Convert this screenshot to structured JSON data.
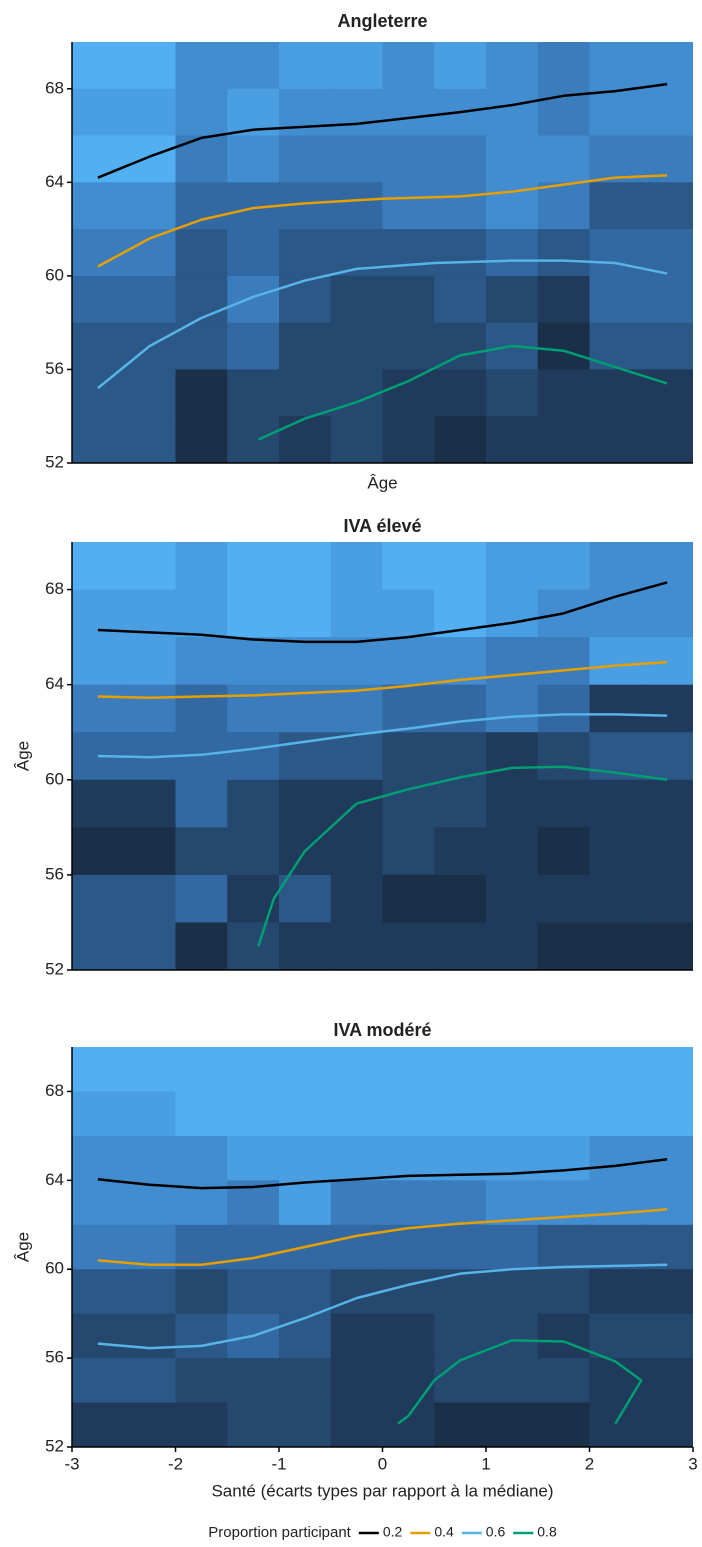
{
  "chart_data": [
    {
      "type": "heatmap",
      "title": "Angleterre",
      "xlabel": "Âge",
      "xlim": [
        -3,
        3
      ],
      "ylim": [
        52,
        70
      ],
      "yticks": [
        52,
        56,
        60,
        64,
        68
      ],
      "tile_x": [
        -3,
        -2.5,
        -2,
        -1.5,
        -1,
        -0.5,
        0,
        0.5,
        1,
        1.5,
        2,
        2.5,
        3
      ],
      "tile_y": [
        70,
        68,
        66,
        64,
        62,
        60,
        58,
        56,
        54,
        52
      ],
      "tiles": [
        [
          "#52b0f2",
          "#52b0f2",
          "#428dd0",
          "#428dd0",
          "#4a9fe2",
          "#4a9fe2",
          "#428dd0",
          "#4a9fe2",
          "#428dd0",
          "#3a7cbc",
          "#428dd0",
          "#428dd0"
        ],
        [
          "#4a9fe2",
          "#4a9fe2",
          "#428dd0",
          "#4a9fe2",
          "#428dd0",
          "#428dd0",
          "#428dd0",
          "#428dd0",
          "#428dd0",
          "#3a7cbc",
          "#428dd0",
          "#428dd0"
        ],
        [
          "#52b0f2",
          "#52b0f2",
          "#3a7cbc",
          "#428dd0",
          "#3a7cbc",
          "#3a7cbc",
          "#3a7cbc",
          "#3a7cbc",
          "#428dd0",
          "#428dd0",
          "#3a7cbc",
          "#3a7cbc"
        ],
        [
          "#428dd0",
          "#428dd0",
          "#3269a2",
          "#3269a2",
          "#3269a2",
          "#3269a2",
          "#3a7cbc",
          "#3a7cbc",
          "#428dd0",
          "#3a7cbc",
          "#2b5887",
          "#2b5887"
        ],
        [
          "#3a7cbc",
          "#3a7cbc",
          "#2b5887",
          "#3269a2",
          "#2b5887",
          "#2b5887",
          "#2b5887",
          "#2b5887",
          "#3269a2",
          "#2b5887",
          "#3269a2",
          "#3269a2"
        ],
        [
          "#3269a2",
          "#3269a2",
          "#2b5887",
          "#3a7cbc",
          "#2b5887",
          "#25486f",
          "#25486f",
          "#2b5887",
          "#25486f",
          "#1f3a5a",
          "#3269a2",
          "#3269a2"
        ],
        [
          "#2b5887",
          "#2b5887",
          "#2b5887",
          "#3269a2",
          "#25486f",
          "#25486f",
          "#25486f",
          "#25486f",
          "#2b5887",
          "#193048",
          "#2b5887",
          "#2b5887"
        ],
        [
          "#2b5887",
          "#2b5887",
          "#193048",
          "#25486f",
          "#25486f",
          "#25486f",
          "#1f3a5a",
          "#1f3a5a",
          "#25486f",
          "#1f3a5a",
          "#1f3a5a",
          "#1f3a5a"
        ],
        [
          "#2b5887",
          "#2b5887",
          "#193048",
          "#25486f",
          "#1f3a5a",
          "#25486f",
          "#1f3a5a",
          "#193048",
          "#1f3a5a",
          "#1f3a5a",
          "#1f3a5a",
          "#1f3a5a"
        ]
      ],
      "series": [
        {
          "name": "0.2",
          "color": "#000000",
          "x": [
            -2.75,
            -2.25,
            -1.75,
            -1.25,
            -0.25,
            0.75,
            1.25,
            1.75,
            2.25,
            2.75
          ],
          "values": [
            64.2,
            65.1,
            65.9,
            66.25,
            66.5,
            67.0,
            67.3,
            67.7,
            67.9,
            68.2
          ]
        },
        {
          "name": "0.4",
          "color": "#e69f00",
          "x": [
            -2.75,
            -2.5,
            -2.25,
            -1.75,
            -1.25,
            -0.75,
            0,
            0.75,
            1.25,
            1.75,
            2.25,
            2.75
          ],
          "values": [
            60.4,
            61.0,
            61.6,
            62.4,
            62.9,
            63.1,
            63.3,
            63.4,
            63.6,
            63.9,
            64.2,
            64.3
          ]
        },
        {
          "name": "0.6",
          "color": "#56b4e9",
          "x": [
            -2.75,
            -2.25,
            -1.75,
            -1.25,
            -0.75,
            -0.25,
            0.5,
            1.25,
            1.75,
            2.25,
            2.75
          ],
          "values": [
            55.2,
            57.0,
            58.2,
            59.1,
            59.8,
            60.3,
            60.55,
            60.65,
            60.65,
            60.55,
            60.1
          ]
        },
        {
          "name": "0.8",
          "color": "#009e73",
          "x": [
            -1.2,
            -0.75,
            -0.25,
            0.25,
            0.75,
            1.25,
            1.75,
            2.25,
            2.75
          ],
          "values": [
            53.0,
            53.9,
            54.6,
            55.5,
            56.6,
            57.0,
            56.8,
            56.1,
            55.4
          ]
        }
      ]
    },
    {
      "type": "heatmap",
      "title": "IVA élevé",
      "ylabel": "Âge",
      "xlim": [
        -3,
        3
      ],
      "ylim": [
        52,
        70
      ],
      "yticks": [
        52,
        56,
        60,
        64,
        68
      ],
      "tile_x": [
        -3,
        -2.5,
        -2,
        -1.5,
        -1,
        -0.5,
        0,
        0.5,
        1,
        1.5,
        2,
        2.5,
        3
      ],
      "tile_y": [
        70,
        68,
        66,
        64,
        62,
        60,
        58,
        56,
        54,
        52
      ],
      "tiles": [
        [
          "#52b0f2",
          "#52b0f2",
          "#4a9fe2",
          "#52b0f2",
          "#52b0f2",
          "#4a9fe2",
          "#52b0f2",
          "#52b0f2",
          "#4a9fe2",
          "#4a9fe2",
          "#428dd0",
          "#428dd0"
        ],
        [
          "#4a9fe2",
          "#4a9fe2",
          "#4a9fe2",
          "#52b0f2",
          "#52b0f2",
          "#4a9fe2",
          "#4a9fe2",
          "#52b0f2",
          "#4a9fe2",
          "#428dd0",
          "#428dd0",
          "#428dd0"
        ],
        [
          "#4a9fe2",
          "#4a9fe2",
          "#428dd0",
          "#428dd0",
          "#428dd0",
          "#428dd0",
          "#428dd0",
          "#428dd0",
          "#3a7cbc",
          "#3a7cbc",
          "#4a9fe2",
          "#4a9fe2"
        ],
        [
          "#3a7cbc",
          "#3a7cbc",
          "#3269a2",
          "#3a7cbc",
          "#3a7cbc",
          "#3a7cbc",
          "#3269a2",
          "#3269a2",
          "#3a7cbc",
          "#3269a2",
          "#1f3a5a",
          "#1f3a5a"
        ],
        [
          "#3269a2",
          "#3269a2",
          "#3269a2",
          "#3269a2",
          "#2b5887",
          "#2b5887",
          "#25486f",
          "#25486f",
          "#1f3a5a",
          "#25486f",
          "#2b5887",
          "#2b5887"
        ],
        [
          "#1f3a5a",
          "#1f3a5a",
          "#3269a2",
          "#25486f",
          "#1f3a5a",
          "#1f3a5a",
          "#25486f",
          "#25486f",
          "#1f3a5a",
          "#1f3a5a",
          "#1f3a5a",
          "#1f3a5a"
        ],
        [
          "#193048",
          "#193048",
          "#25486f",
          "#25486f",
          "#1f3a5a",
          "#1f3a5a",
          "#25486f",
          "#1f3a5a",
          "#1f3a5a",
          "#193048",
          "#1f3a5a",
          "#1f3a5a"
        ],
        [
          "#2b5887",
          "#2b5887",
          "#3269a2",
          "#1f3a5a",
          "#2b5887",
          "#1f3a5a",
          "#193048",
          "#193048",
          "#1f3a5a",
          "#1f3a5a",
          "#1f3a5a",
          "#1f3a5a"
        ],
        [
          "#2b5887",
          "#2b5887",
          "#193048",
          "#25486f",
          "#1f3a5a",
          "#1f3a5a",
          "#1f3a5a",
          "#1f3a5a",
          "#1f3a5a",
          "#193048",
          "#193048",
          "#193048"
        ]
      ],
      "series": [
        {
          "name": "0.2",
          "color": "#000000",
          "x": [
            -2.75,
            -2.25,
            -1.75,
            -1.25,
            -0.75,
            -0.25,
            0.25,
            0.75,
            1.25,
            1.75,
            2.25,
            2.75
          ],
          "values": [
            66.3,
            66.2,
            66.1,
            65.9,
            65.8,
            65.8,
            66.0,
            66.3,
            66.6,
            67.0,
            67.7,
            68.3
          ]
        },
        {
          "name": "0.4",
          "color": "#e69f00",
          "x": [
            -2.75,
            -2.25,
            -1.75,
            -1.25,
            -0.75,
            -0.25,
            0.25,
            0.75,
            1.25,
            1.75,
            2.25,
            2.75
          ],
          "values": [
            63.5,
            63.45,
            63.5,
            63.55,
            63.65,
            63.75,
            63.95,
            64.2,
            64.4,
            64.6,
            64.8,
            64.95
          ]
        },
        {
          "name": "0.6",
          "color": "#56b4e9",
          "x": [
            -2.75,
            -2.25,
            -1.75,
            -1.25,
            -0.75,
            -0.25,
            0.25,
            0.75,
            1.25,
            1.75,
            2.25,
            2.75
          ],
          "values": [
            61.0,
            60.95,
            61.05,
            61.3,
            61.6,
            61.9,
            62.15,
            62.45,
            62.65,
            62.75,
            62.75,
            62.7
          ]
        },
        {
          "name": "0.8",
          "color": "#009e73",
          "x": [
            -1.2,
            -1.05,
            -0.75,
            -0.25,
            0.25,
            0.75,
            1.25,
            1.75,
            2.25,
            2.75
          ],
          "values": [
            53.0,
            55.0,
            57.0,
            59.0,
            59.6,
            60.1,
            60.5,
            60.55,
            60.3,
            60.0
          ]
        }
      ]
    },
    {
      "type": "heatmap",
      "title": "IVA modéré",
      "ylabel": "Âge",
      "xlabel": "Santé (écarts types par rapport à la médiane)",
      "xlim": [
        -3,
        3
      ],
      "xticks": [
        -3,
        -2,
        -1,
        0,
        1,
        2,
        3
      ],
      "ylim": [
        52,
        70
      ],
      "yticks": [
        52,
        56,
        60,
        64,
        68
      ],
      "tile_x": [
        -3,
        -2.5,
        -2,
        -1.5,
        -1,
        -0.5,
        0,
        0.5,
        1,
        1.5,
        2,
        2.5,
        3
      ],
      "tile_y": [
        70,
        68,
        66,
        64,
        62,
        60,
        58,
        56,
        54,
        52
      ],
      "tiles": [
        [
          "#52b0f2",
          "#52b0f2",
          "#52b0f2",
          "#52b0f2",
          "#52b0f2",
          "#52b0f2",
          "#52b0f2",
          "#52b0f2",
          "#52b0f2",
          "#52b0f2",
          "#52b0f2",
          "#52b0f2"
        ],
        [
          "#4a9fe2",
          "#4a9fe2",
          "#52b0f2",
          "#52b0f2",
          "#52b0f2",
          "#52b0f2",
          "#52b0f2",
          "#52b0f2",
          "#52b0f2",
          "#52b0f2",
          "#52b0f2",
          "#52b0f2"
        ],
        [
          "#428dd0",
          "#428dd0",
          "#428dd0",
          "#4a9fe2",
          "#4a9fe2",
          "#4a9fe2",
          "#4a9fe2",
          "#4a9fe2",
          "#4a9fe2",
          "#4a9fe2",
          "#428dd0",
          "#428dd0"
        ],
        [
          "#428dd0",
          "#428dd0",
          "#428dd0",
          "#3a7cbc",
          "#4a9fe2",
          "#3a7cbc",
          "#3a7cbc",
          "#3a7cbc",
          "#428dd0",
          "#428dd0",
          "#428dd0",
          "#428dd0"
        ],
        [
          "#3a7cbc",
          "#3a7cbc",
          "#3269a2",
          "#3269a2",
          "#3269a2",
          "#3269a2",
          "#3269a2",
          "#3269a2",
          "#3269a2",
          "#2b5887",
          "#2b5887",
          "#2b5887"
        ],
        [
          "#2b5887",
          "#2b5887",
          "#25486f",
          "#2b5887",
          "#2b5887",
          "#25486f",
          "#25486f",
          "#25486f",
          "#25486f",
          "#25486f",
          "#1f3a5a",
          "#1f3a5a"
        ],
        [
          "#25486f",
          "#25486f",
          "#2b5887",
          "#3269a2",
          "#2b5887",
          "#1f3a5a",
          "#1f3a5a",
          "#25486f",
          "#25486f",
          "#1f3a5a",
          "#25486f",
          "#25486f"
        ],
        [
          "#2b5887",
          "#2b5887",
          "#25486f",
          "#25486f",
          "#25486f",
          "#1f3a5a",
          "#1f3a5a",
          "#25486f",
          "#25486f",
          "#25486f",
          "#1f3a5a",
          "#1f3a5a"
        ],
        [
          "#1f3a5a",
          "#1f3a5a",
          "#1f3a5a",
          "#25486f",
          "#25486f",
          "#1f3a5a",
          "#1f3a5a",
          "#193048",
          "#193048",
          "#193048",
          "#1f3a5a",
          "#1f3a5a"
        ]
      ],
      "series": [
        {
          "name": "0.2",
          "color": "#000000",
          "x": [
            -2.75,
            -2.25,
            -1.75,
            -1.25,
            -0.75,
            -0.25,
            0.25,
            0.75,
            1.25,
            1.75,
            2.25,
            2.75
          ],
          "values": [
            64.05,
            63.8,
            63.65,
            63.7,
            63.9,
            64.05,
            64.2,
            64.25,
            64.3,
            64.45,
            64.65,
            64.95
          ]
        },
        {
          "name": "0.4",
          "color": "#e69f00",
          "x": [
            -2.75,
            -2.25,
            -1.75,
            -1.25,
            -0.75,
            -0.25,
            0.25,
            0.75,
            1.25,
            1.75,
            2.25,
            2.75
          ],
          "values": [
            60.4,
            60.2,
            60.2,
            60.5,
            61.0,
            61.5,
            61.85,
            62.05,
            62.2,
            62.35,
            62.5,
            62.7
          ]
        },
        {
          "name": "0.6",
          "color": "#56b4e9",
          "x": [
            -2.75,
            -2.25,
            -1.75,
            -1.25,
            -0.75,
            -0.25,
            0.25,
            0.75,
            1.25,
            1.75,
            2.25,
            2.75
          ],
          "values": [
            56.65,
            56.45,
            56.55,
            57.0,
            57.8,
            58.7,
            59.3,
            59.8,
            60.0,
            60.1,
            60.15,
            60.2
          ]
        },
        {
          "name": "0.8",
          "color": "#009e73",
          "x": [
            0.15,
            0.25,
            0.5,
            0.75,
            1.25,
            1.75,
            2.25,
            2.5,
            2.25
          ],
          "values": [
            53.05,
            53.4,
            55.0,
            55.9,
            56.8,
            56.75,
            55.85,
            55.0,
            53.05
          ]
        }
      ],
      "legend": {
        "title": "Proportion participant",
        "position": "bottom"
      }
    }
  ]
}
